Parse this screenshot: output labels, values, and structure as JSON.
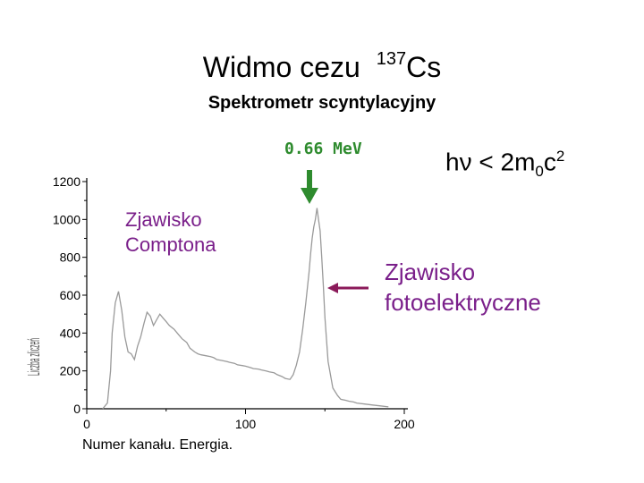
{
  "title": {
    "text": "Widmo cezu",
    "isotope_mass": "137",
    "isotope_symbol": "Cs"
  },
  "subtitle": "Spektrometr scyntylacyjny",
  "annotations": {
    "peak_energy": "0.66 MeV",
    "condition": {
      "hv": "hν",
      "op": "< 2m",
      "sub": "0",
      "c": "c",
      "sup": "2"
    },
    "compton": [
      "Zjawisko",
      "Comptona"
    ],
    "photoelectric": [
      "Zjawisko",
      "fotoelektryczne"
    ],
    "y_axis_fragment": "Liczba zliczeń",
    "colors": {
      "arrow_green": "#2e8b2e",
      "annotation_purple": "#7a1f8a",
      "arrow_red": "#8b1a5a",
      "curve_gray": "#9a9a9a"
    }
  },
  "chart_data": {
    "type": "line",
    "xlabel": "Numer kanału.  Energia.",
    "ylabel": "",
    "xlim": [
      0,
      200
    ],
    "ylim": [
      0,
      1200
    ],
    "x_ticks": [
      0,
      100,
      200
    ],
    "y_ticks": [
      0,
      200,
      400,
      600,
      800,
      1000,
      1200
    ],
    "grid": false,
    "series": [
      {
        "x": [
          10,
          13,
          15,
          16,
          18,
          20,
          22,
          24,
          26,
          28,
          30,
          32,
          34,
          36,
          38,
          40,
          42,
          44,
          46,
          48,
          50,
          52,
          55,
          58,
          60,
          63,
          65,
          68,
          70,
          72,
          75,
          78,
          80,
          82,
          85,
          88,
          90,
          93,
          95,
          98,
          100,
          103,
          105,
          108,
          110,
          113,
          115,
          118,
          120,
          123,
          125,
          128,
          130,
          132,
          134,
          136,
          138,
          140,
          141,
          142,
          143,
          144,
          145,
          146,
          147,
          148,
          149,
          150,
          152,
          155,
          158,
          160,
          163,
          165,
          168,
          170,
          175,
          180,
          185,
          190
        ],
        "y": [
          0,
          30,
          200,
          400,
          560,
          620,
          520,
          380,
          300,
          290,
          260,
          330,
          380,
          450,
          510,
          490,
          440,
          470,
          500,
          480,
          460,
          440,
          420,
          390,
          370,
          350,
          320,
          300,
          290,
          285,
          280,
          275,
          270,
          260,
          255,
          250,
          245,
          240,
          232,
          228,
          225,
          218,
          212,
          210,
          205,
          200,
          195,
          190,
          180,
          170,
          160,
          155,
          180,
          230,
          300,
          420,
          560,
          720,
          820,
          900,
          960,
          1000,
          1060,
          1000,
          940,
          800,
          650,
          480,
          250,
          110,
          70,
          50,
          45,
          40,
          36,
          30,
          25,
          20,
          15,
          10
        ]
      }
    ]
  }
}
